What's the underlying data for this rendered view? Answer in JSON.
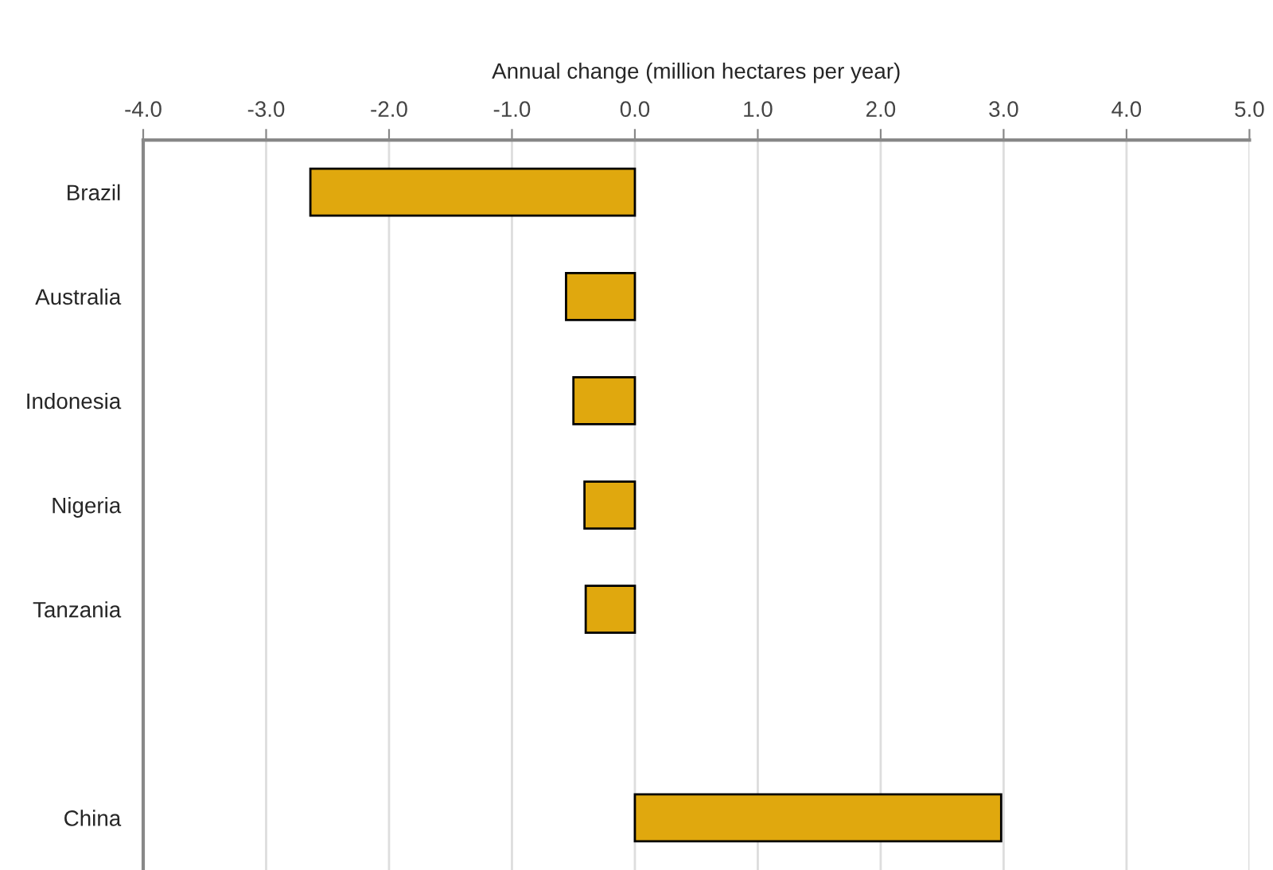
{
  "chart_data": {
    "type": "bar",
    "orientation": "horizontal",
    "xlabel": "Annual change (million hectares per year)",
    "categories": [
      "Brazil",
      "Australia",
      "Indonesia",
      "Nigeria",
      "Tanzania",
      null,
      "China"
    ],
    "values": [
      -2.64,
      -0.56,
      -0.5,
      -0.41,
      -0.4,
      null,
      2.98
    ],
    "color": "#e0a80e",
    "xlim": [
      -4,
      5
    ],
    "xticks": [
      {
        "value": -4,
        "label": "-4.0"
      },
      {
        "value": -3,
        "label": "-3.0"
      },
      {
        "value": -2,
        "label": "-2.0"
      },
      {
        "value": -1,
        "label": "-1.0"
      },
      {
        "value": 0,
        "label": "0.0"
      },
      {
        "value": 1,
        "label": "1.0"
      },
      {
        "value": 2,
        "label": "2.0"
      },
      {
        "value": 3,
        "label": "3.0"
      },
      {
        "value": 4,
        "label": "4.0"
      },
      {
        "value": 5,
        "label": "5.0"
      }
    ],
    "grid": "x",
    "legend": false
  }
}
